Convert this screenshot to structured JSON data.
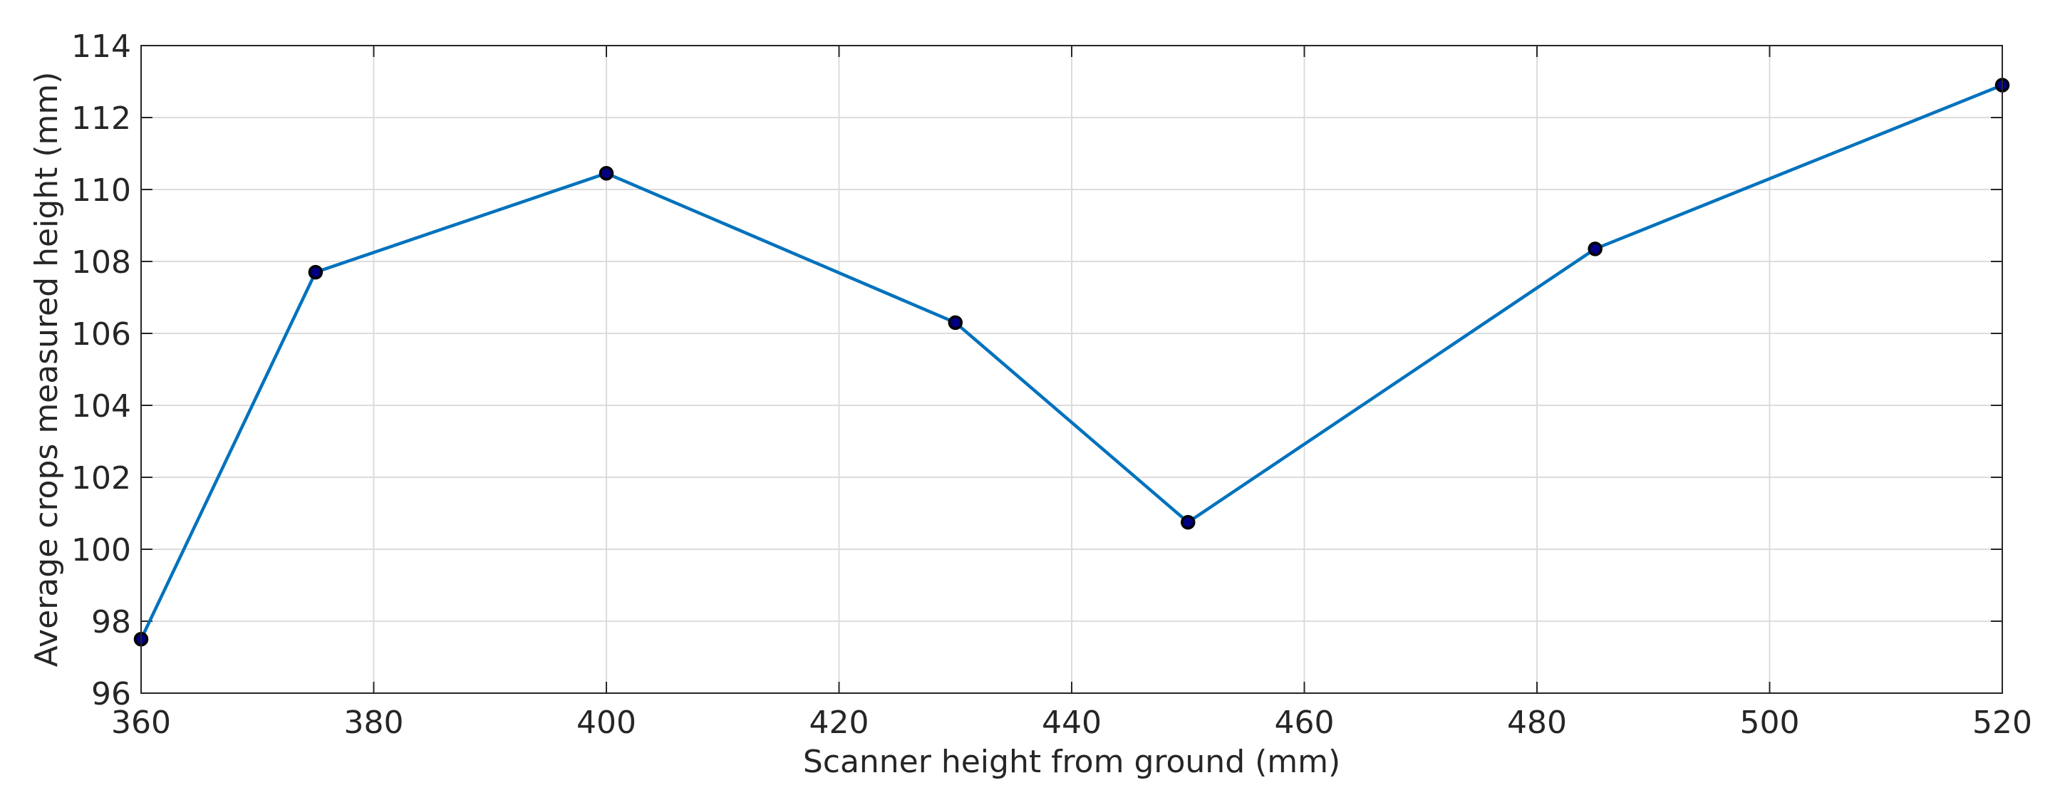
{
  "chart_data": {
    "type": "line",
    "title": "",
    "xlabel": "Scanner height from ground (mm)",
    "ylabel": "Average crops measured height (mm)",
    "xlim": [
      360,
      520
    ],
    "ylim": [
      96,
      114
    ],
    "xticks": [
      360,
      380,
      400,
      420,
      440,
      460,
      480,
      500,
      520
    ],
    "yticks": [
      96,
      98,
      100,
      102,
      104,
      106,
      108,
      110,
      112,
      114
    ],
    "grid": true,
    "series": [
      {
        "x": [
          360,
          375,
          400,
          430,
          450,
          485,
          520
        ],
        "y": [
          97.5,
          107.7,
          110.45,
          106.3,
          100.75,
          108.35,
          112.9
        ],
        "line_color": "#0072BD",
        "marker": "circle",
        "marker_face_color": "#000080",
        "marker_edge_color": "#000000"
      }
    ]
  }
}
